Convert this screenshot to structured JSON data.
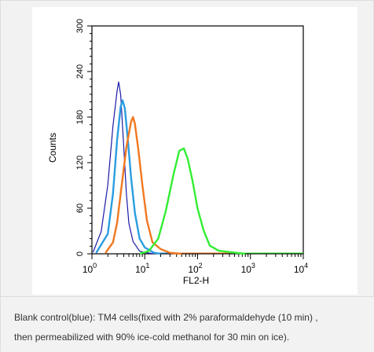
{
  "caption": {
    "line1": "Blank control(blue): TM4 cells(fixed with 2% paraformaldehyde (10 min) ,",
    "line2": "then permeabilized with 90% ice-cold methanol for 30 min on ice)."
  },
  "chart_data": {
    "type": "line",
    "title": "",
    "xlabel": "FL2-H",
    "ylabel": "Counts",
    "xscale": "log",
    "xlim": [
      1,
      10000
    ],
    "ylim": [
      0,
      300
    ],
    "y_ticks": [
      0,
      60,
      120,
      180,
      240,
      300
    ],
    "x_tick_labels": [
      {
        "base": "10",
        "exp": "0",
        "value": 1
      },
      {
        "base": "10",
        "exp": "1",
        "value": 10
      },
      {
        "base": "10",
        "exp": "2",
        "value": 100
      },
      {
        "base": "10",
        "exp": "3",
        "value": 1000
      },
      {
        "base": "10",
        "exp": "4",
        "value": 10000
      }
    ],
    "grid": false,
    "legend": "none",
    "series": [
      {
        "color": "#1a1aa8",
        "x": [
          1.05,
          1.5,
          2.0,
          2.5,
          3.0,
          3.2,
          3.5,
          4.0,
          4.5,
          5.0,
          6.0,
          8.0,
          10.0,
          15.0
        ],
        "y": [
          2,
          30,
          90,
          170,
          215,
          225,
          210,
          140,
          80,
          40,
          15,
          4,
          1,
          0
        ]
      },
      {
        "color": "#2a9de0",
        "x": [
          1.2,
          2.0,
          2.5,
          3.0,
          3.5,
          3.8,
          4.2,
          4.8,
          5.5,
          6.5,
          8.0,
          10.0,
          15.0,
          20.0
        ],
        "y": [
          1,
          25,
          80,
          150,
          195,
          202,
          190,
          150,
          100,
          55,
          20,
          7,
          2,
          0
        ]
      },
      {
        "color": "#f07820",
        "x": [
          1.8,
          2.5,
          3.0,
          3.5,
          4.5,
          5.5,
          6.0,
          6.5,
          7.5,
          9.0,
          11.0,
          14.0,
          20.0,
          30.0,
          50.0
        ],
        "y": [
          1,
          15,
          40,
          80,
          140,
          175,
          180,
          170,
          140,
          90,
          45,
          15,
          5,
          2,
          0
        ]
      },
      {
        "color": "#33ee33",
        "x": [
          8.0,
          12.0,
          18.0,
          25.0,
          35.0,
          45.0,
          55.0,
          65.0,
          80.0,
          100.0,
          130.0,
          170.0,
          250.0,
          400.0,
          800.0
        ],
        "y": [
          0,
          5,
          20,
          55,
          105,
          135,
          140,
          125,
          95,
          60,
          30,
          12,
          4,
          1,
          0
        ]
      }
    ]
  }
}
